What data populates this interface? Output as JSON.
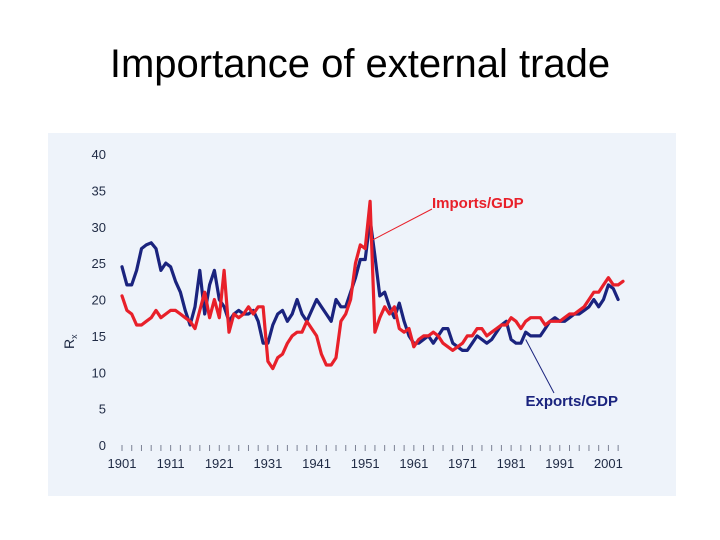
{
  "slide": {
    "title": "Importance of external trade"
  },
  "chart_data": {
    "type": "line",
    "title": "Importance of external trade",
    "ylabel": "R",
    "ylabel_sub": "x",
    "xlim": [
      1901,
      2004
    ],
    "ylim": [
      0,
      40
    ],
    "yticks": [
      0,
      5,
      10,
      15,
      20,
      25,
      30,
      35,
      40
    ],
    "xticks": [
      1901,
      1911,
      1921,
      1931,
      1941,
      1951,
      1961,
      1971,
      1981,
      1991,
      2001
    ],
    "grid": false,
    "colors": {
      "imports": "#e8202a",
      "exports": "#1a237e",
      "axis_text": "#1f2a44",
      "panel": "#eef3fa"
    },
    "series": [
      {
        "name": "Exports/GDP",
        "color": "#1a237e",
        "points": [
          [
            1901,
            24.5
          ],
          [
            1902,
            22
          ],
          [
            1903,
            22
          ],
          [
            1904,
            24
          ],
          [
            1905,
            27
          ],
          [
            1906,
            27.5
          ],
          [
            1907,
            27.8
          ],
          [
            1908,
            27
          ],
          [
            1909,
            24
          ],
          [
            1910,
            25
          ],
          [
            1911,
            24.5
          ],
          [
            1912,
            22.5
          ],
          [
            1913,
            21
          ],
          [
            1914,
            18.5
          ],
          [
            1915,
            16.5
          ],
          [
            1916,
            19
          ],
          [
            1917,
            24
          ],
          [
            1918,
            18
          ],
          [
            1919,
            22
          ],
          [
            1920,
            24
          ],
          [
            1921,
            20
          ],
          [
            1922,
            19
          ],
          [
            1923,
            17
          ],
          [
            1924,
            18
          ],
          [
            1925,
            18.5
          ],
          [
            1926,
            18
          ],
          [
            1927,
            18
          ],
          [
            1928,
            18.5
          ],
          [
            1929,
            17
          ],
          [
            1930,
            14
          ],
          [
            1931,
            14
          ],
          [
            1932,
            16.5
          ],
          [
            1933,
            18
          ],
          [
            1934,
            18.5
          ],
          [
            1935,
            17
          ],
          [
            1936,
            18
          ],
          [
            1937,
            20
          ],
          [
            1938,
            18
          ],
          [
            1939,
            17
          ],
          [
            1940,
            18.5
          ],
          [
            1941,
            20
          ],
          [
            1942,
            19
          ],
          [
            1943,
            18
          ],
          [
            1944,
            17
          ],
          [
            1945,
            20
          ],
          [
            1946,
            19
          ],
          [
            1947,
            19
          ],
          [
            1948,
            21
          ],
          [
            1949,
            23
          ],
          [
            1950,
            25.5
          ],
          [
            1951,
            25.5
          ],
          [
            1952,
            31
          ],
          [
            1953,
            26
          ],
          [
            1954,
            20.5
          ],
          [
            1955,
            21
          ],
          [
            1956,
            19
          ],
          [
            1957,
            17.5
          ],
          [
            1958,
            19.5
          ],
          [
            1959,
            17
          ],
          [
            1960,
            15
          ],
          [
            1961,
            14
          ],
          [
            1962,
            14
          ],
          [
            1963,
            14.5
          ],
          [
            1964,
            15
          ],
          [
            1965,
            14
          ],
          [
            1966,
            15
          ],
          [
            1967,
            16
          ],
          [
            1968,
            16
          ],
          [
            1969,
            14
          ],
          [
            1970,
            13.5
          ],
          [
            1971,
            13
          ],
          [
            1972,
            13
          ],
          [
            1973,
            14
          ],
          [
            1974,
            15
          ],
          [
            1975,
            14.5
          ],
          [
            1976,
            14
          ],
          [
            1977,
            14.5
          ],
          [
            1978,
            15.5
          ],
          [
            1979,
            16.5
          ],
          [
            1980,
            17
          ],
          [
            1981,
            14.5
          ],
          [
            1982,
            14
          ],
          [
            1983,
            14
          ],
          [
            1984,
            15.5
          ],
          [
            1985,
            15
          ],
          [
            1986,
            15
          ],
          [
            1987,
            15
          ],
          [
            1988,
            16
          ],
          [
            1989,
            17
          ],
          [
            1990,
            17.5
          ],
          [
            1991,
            17
          ],
          [
            1992,
            17
          ],
          [
            1993,
            17.5
          ],
          [
            1994,
            18
          ],
          [
            1995,
            18
          ],
          [
            1996,
            18.5
          ],
          [
            1997,
            19
          ],
          [
            1998,
            20
          ],
          [
            1999,
            19
          ],
          [
            2000,
            20
          ],
          [
            2001,
            22
          ],
          [
            2002,
            21.5
          ],
          [
            2003,
            20
          ]
        ]
      },
      {
        "name": "Imports/GDP",
        "color": "#e8202a",
        "points": [
          [
            1901,
            20.5
          ],
          [
            1902,
            18.5
          ],
          [
            1903,
            18
          ],
          [
            1904,
            16.5
          ],
          [
            1905,
            16.5
          ],
          [
            1906,
            17
          ],
          [
            1907,
            17.5
          ],
          [
            1908,
            18.5
          ],
          [
            1909,
            17.5
          ],
          [
            1910,
            18
          ],
          [
            1911,
            18.5
          ],
          [
            1912,
            18.5
          ],
          [
            1913,
            18
          ],
          [
            1914,
            17.5
          ],
          [
            1915,
            17
          ],
          [
            1916,
            16
          ],
          [
            1917,
            18.5
          ],
          [
            1918,
            21
          ],
          [
            1919,
            17.5
          ],
          [
            1920,
            20
          ],
          [
            1921,
            17.5
          ],
          [
            1922,
            24
          ],
          [
            1923,
            15.5
          ],
          [
            1924,
            18
          ],
          [
            1925,
            17.5
          ],
          [
            1926,
            18
          ],
          [
            1927,
            19
          ],
          [
            1928,
            18
          ],
          [
            1929,
            19
          ],
          [
            1930,
            19
          ],
          [
            1931,
            11.5
          ],
          [
            1932,
            10.5
          ],
          [
            1933,
            12
          ],
          [
            1934,
            12.5
          ],
          [
            1935,
            14
          ],
          [
            1936,
            15
          ],
          [
            1937,
            15.5
          ],
          [
            1938,
            15.5
          ],
          [
            1939,
            17
          ],
          [
            1940,
            16
          ],
          [
            1941,
            15
          ],
          [
            1942,
            12.5
          ],
          [
            1943,
            11
          ],
          [
            1944,
            11
          ],
          [
            1945,
            12
          ],
          [
            1946,
            17
          ],
          [
            1947,
            18
          ],
          [
            1948,
            20
          ],
          [
            1949,
            25
          ],
          [
            1950,
            27.5
          ],
          [
            1951,
            27
          ],
          [
            1952,
            33.5
          ],
          [
            1953,
            15.5
          ],
          [
            1954,
            17.5
          ],
          [
            1955,
            19
          ],
          [
            1956,
            18
          ],
          [
            1957,
            19
          ],
          [
            1958,
            16
          ],
          [
            1959,
            15.5
          ],
          [
            1960,
            16
          ],
          [
            1961,
            13.5
          ],
          [
            1962,
            14.5
          ],
          [
            1963,
            15
          ],
          [
            1964,
            15
          ],
          [
            1965,
            15.5
          ],
          [
            1966,
            15
          ],
          [
            1967,
            14
          ],
          [
            1968,
            13.5
          ],
          [
            1969,
            13
          ],
          [
            1970,
            13.5
          ],
          [
            1971,
            14
          ],
          [
            1972,
            15
          ],
          [
            1973,
            15
          ],
          [
            1974,
            16
          ],
          [
            1975,
            16
          ],
          [
            1976,
            15
          ],
          [
            1977,
            15.5
          ],
          [
            1978,
            16
          ],
          [
            1979,
            16.5
          ],
          [
            1980,
            16.5
          ],
          [
            1981,
            17.5
          ],
          [
            1982,
            17
          ],
          [
            1983,
            16
          ],
          [
            1984,
            17
          ],
          [
            1985,
            17.5
          ],
          [
            1986,
            17.5
          ],
          [
            1987,
            17.5
          ],
          [
            1988,
            16.5
          ],
          [
            1989,
            17
          ],
          [
            1990,
            17
          ],
          [
            1991,
            17
          ],
          [
            1992,
            17.5
          ],
          [
            1993,
            18
          ],
          [
            1994,
            18
          ],
          [
            1995,
            18.5
          ],
          [
            1996,
            19
          ],
          [
            1997,
            20
          ],
          [
            1998,
            21
          ],
          [
            1999,
            21
          ],
          [
            2000,
            22
          ],
          [
            2001,
            23
          ],
          [
            2002,
            22
          ],
          [
            2003,
            22
          ],
          [
            2004,
            22.5
          ]
        ]
      }
    ],
    "annotations": [
      {
        "text": "Imports/GDP",
        "series": "Imports/GDP",
        "color": "#e8202a",
        "anchor_x": 1952,
        "anchor_y": 28
      },
      {
        "text": "Exports/GDP",
        "series": "Exports/GDP",
        "color": "#1a237e",
        "anchor_x": 1984,
        "anchor_y": 14.5
      }
    ]
  }
}
